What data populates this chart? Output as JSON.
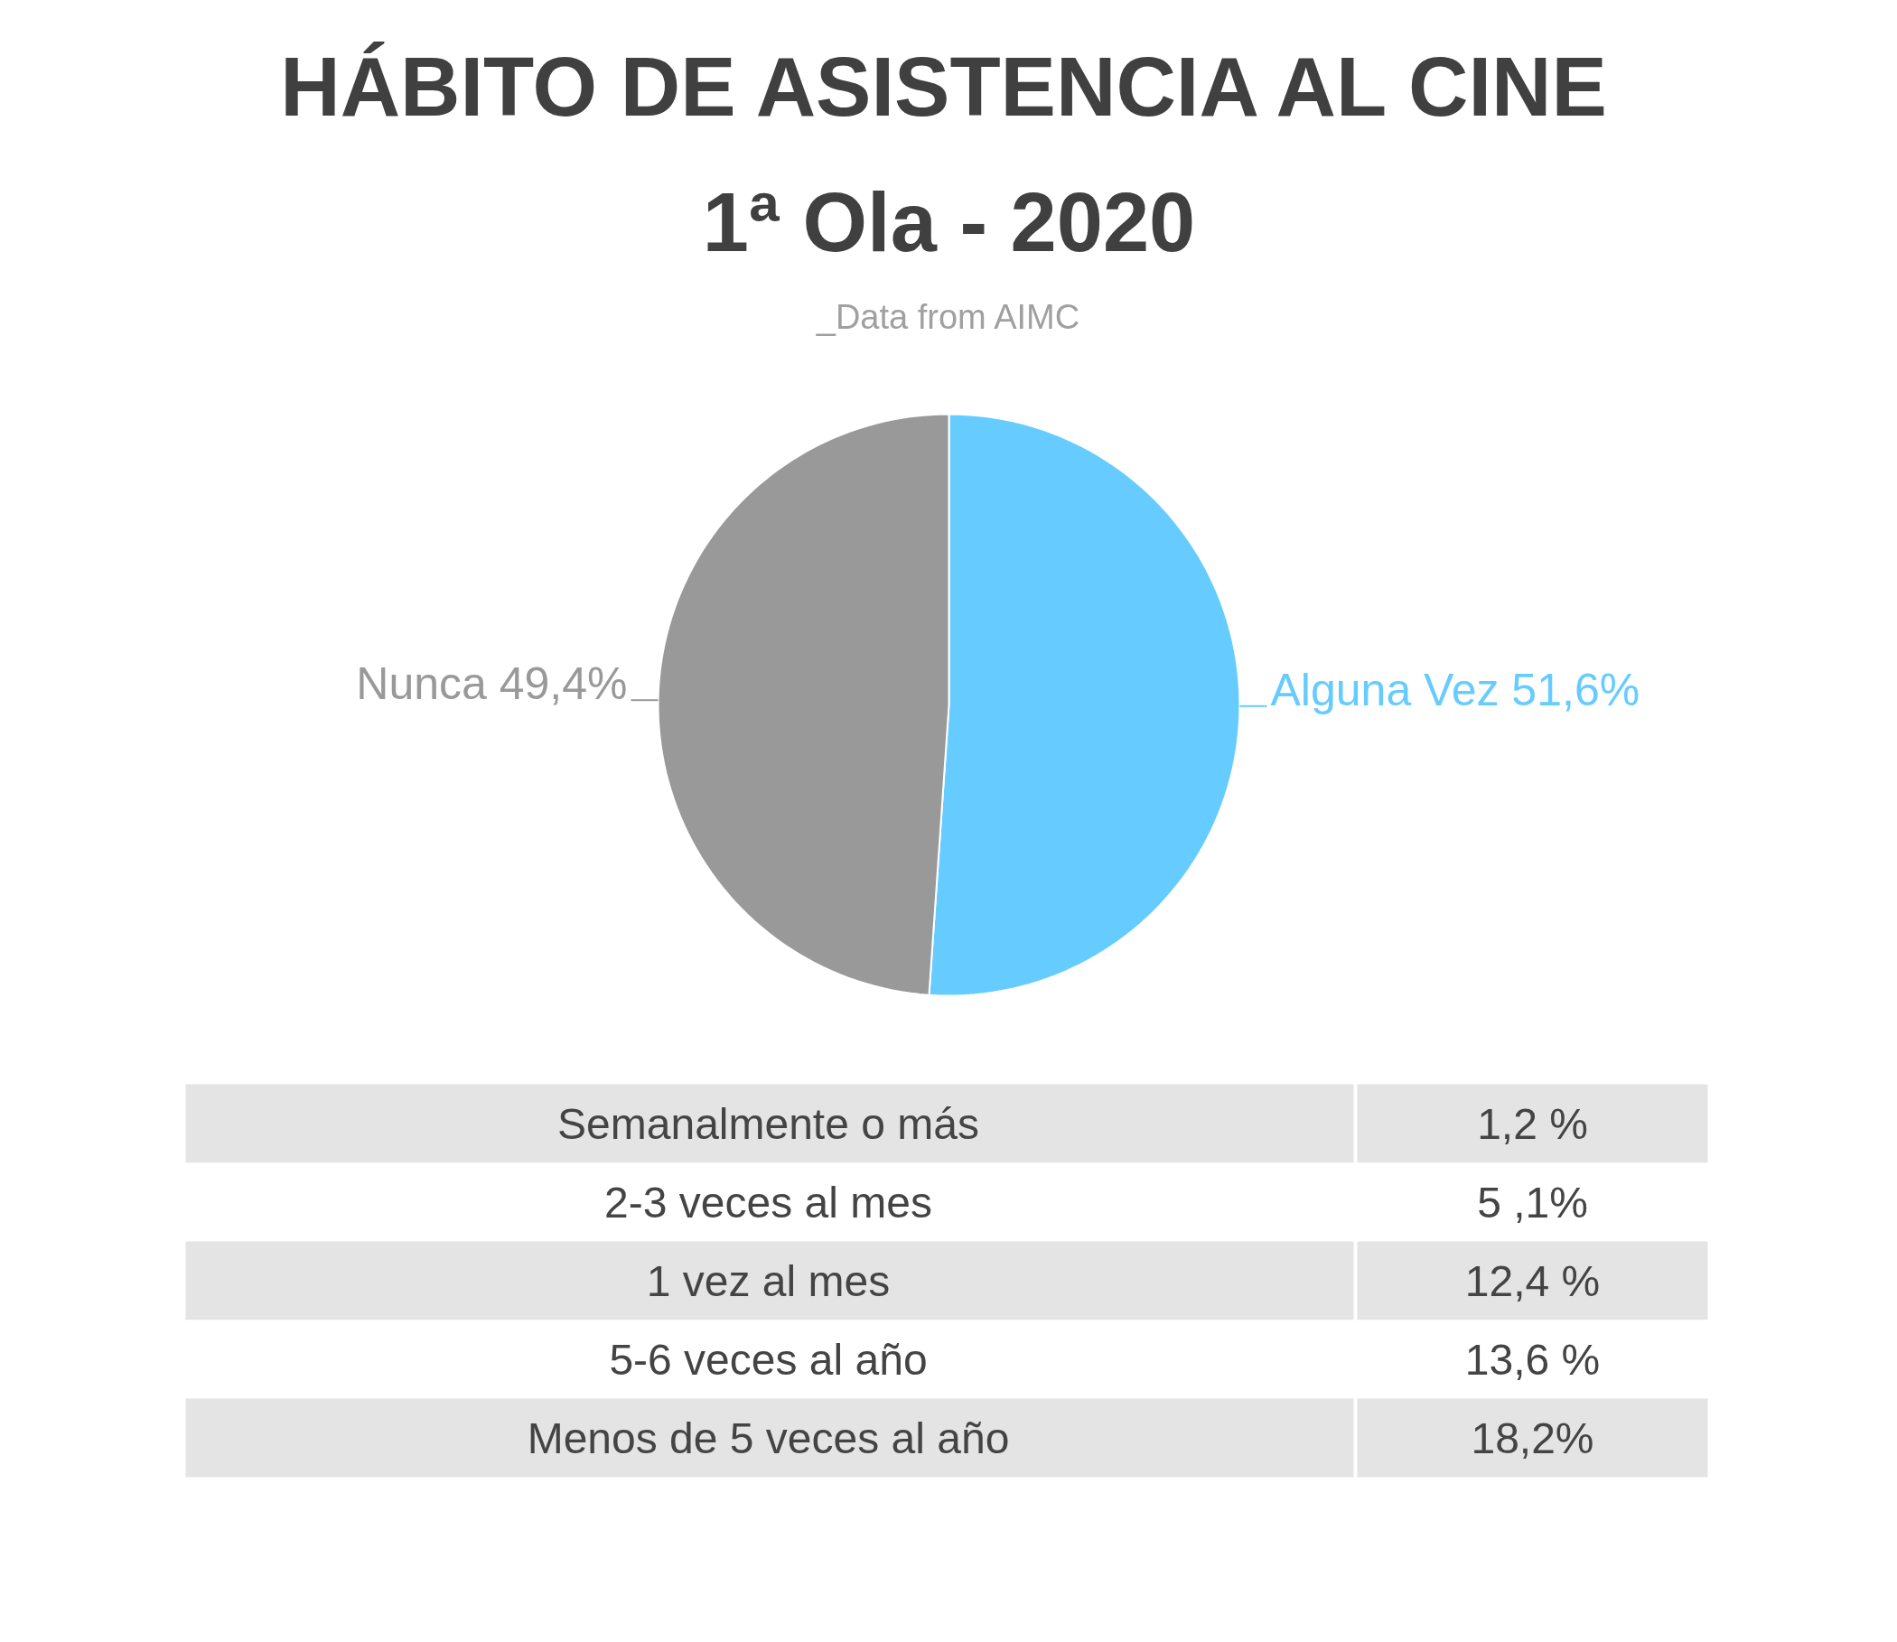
{
  "chart_data": [
    {
      "type": "pie",
      "title": "HÁBITO DE ASISTENCIA AL CINE\n1ª Ola - 2020",
      "subtitle": "_Data from AIMC",
      "categories": [
        "Alguna Vez",
        "Nunca"
      ],
      "values": [
        51.6,
        49.4
      ],
      "colors": [
        "#66ccff",
        "#999999"
      ],
      "value_labels": [
        "51,6%",
        "49,4%"
      ]
    },
    {
      "type": "other",
      "categories": [
        "Semanalmente o más",
        "2-3 veces al mes",
        "1 vez al mes",
        "5-6 veces al año",
        "Menos de 5 veces al año"
      ],
      "value_labels": [
        "1,2 %",
        "5 ,1%",
        "12,4 %",
        "13,6 %",
        "18,2%"
      ]
    }
  ]
}
